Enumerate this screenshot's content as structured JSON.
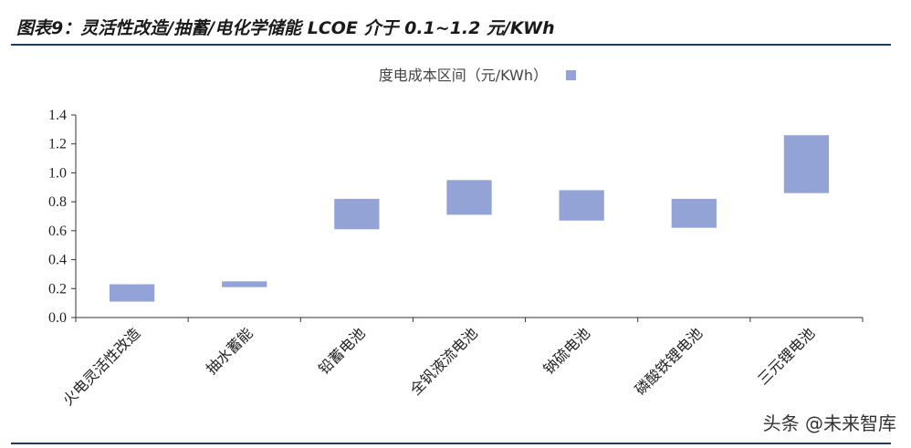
{
  "title": "图表9：灵活性改造/抽蓄/电化学储能 LCOE 介于 0.1~1.2 元/KWh",
  "watermark": "头条 @未来智库",
  "colors": {
    "bar": "#94a3d6",
    "axis": "#333333",
    "rule": "#1f3c5a"
  },
  "chart_data": {
    "type": "bar",
    "subtype": "floating-range",
    "categories": [
      "火电灵活性改造",
      "抽水蓄能",
      "铅蓄电池",
      "全钒液流电池",
      "钠硫电池",
      "磷酸铁锂电池",
      "三元锂电池"
    ],
    "series": [
      {
        "name": "度电成本区间（元/KWh）",
        "low": [
          0.11,
          0.21,
          0.61,
          0.71,
          0.67,
          0.62,
          0.86
        ],
        "high": [
          0.23,
          0.25,
          0.82,
          0.95,
          0.88,
          0.82,
          1.26
        ]
      }
    ],
    "yticks": [
      "0.0",
      "0.2",
      "0.4",
      "0.6",
      "0.8",
      "1.0",
      "1.2",
      "1.4"
    ],
    "ylim": [
      0,
      1.4
    ],
    "grid": false,
    "legend": "top-center"
  }
}
